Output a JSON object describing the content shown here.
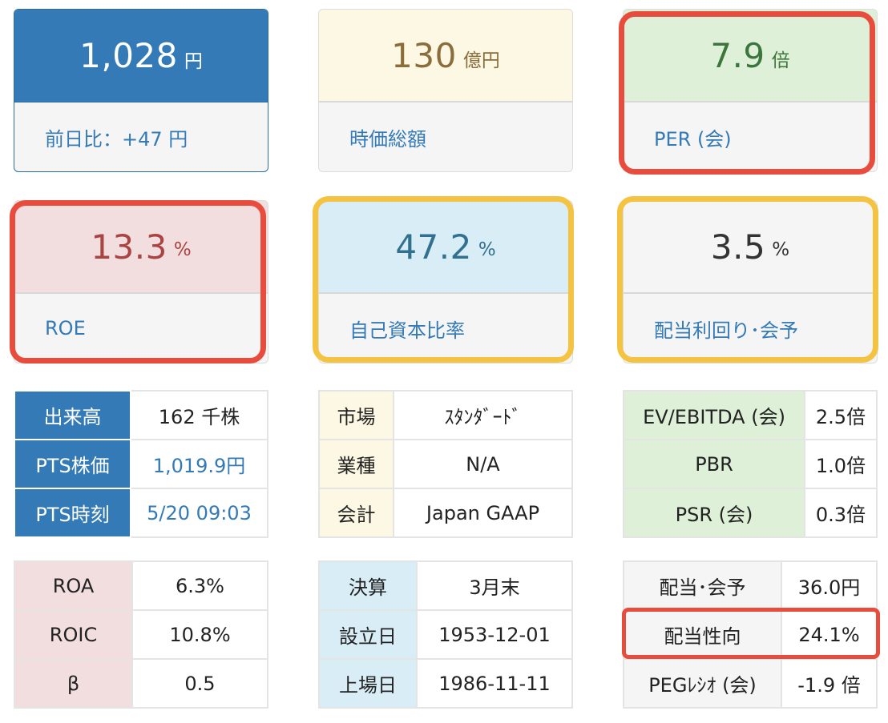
{
  "cards": [
    {
      "value": "1,028",
      "unit": "円",
      "label": "前日比：+47 円"
    },
    {
      "value": "130",
      "unit": "億円",
      "label": "時価総額"
    },
    {
      "value": "7.9",
      "unit": "倍",
      "label": "PER (会)"
    },
    {
      "value": "13.3",
      "unit": "%",
      "label": "ROE"
    },
    {
      "value": "47.2",
      "unit": "%",
      "label": "自己資本比率"
    },
    {
      "value": "3.5",
      "unit": "%",
      "label": "配当利回り･会予"
    }
  ],
  "table_trading": [
    {
      "key": "出来高",
      "value": "162 千株"
    },
    {
      "key": "PTS株価",
      "value": "1,019.9円"
    },
    {
      "key": "PTS時刻",
      "value": "5/20 09:03"
    }
  ],
  "table_market": [
    {
      "key": "市場",
      "value": "ｽﾀﾝﾀﾞｰﾄﾞ"
    },
    {
      "key": "業種",
      "value": "N/A"
    },
    {
      "key": "会計",
      "value": "Japan GAAP"
    }
  ],
  "table_valuation": [
    {
      "key": "EV/EBITDA (会)",
      "value": "2.5倍"
    },
    {
      "key": "PBR",
      "value": "1.0倍"
    },
    {
      "key": "PSR (会)",
      "value": "0.3倍"
    }
  ],
  "table_returns": [
    {
      "key": "ROA",
      "value": "6.3%"
    },
    {
      "key": "ROIC",
      "value": "10.8%"
    },
    {
      "key": "β",
      "value": "0.5"
    }
  ],
  "table_company": [
    {
      "key": "決算",
      "value": "3月末"
    },
    {
      "key": "設立日",
      "value": "1953-12-01"
    },
    {
      "key": "上場日",
      "value": "1986-11-11"
    }
  ],
  "table_dividend": [
    {
      "key": "配当･会予",
      "value": "36.0円"
    },
    {
      "key": "配当性向",
      "value": "24.1%"
    },
    {
      "key": "PEGﾚｼｵ (会)",
      "value": "-1.9 倍"
    }
  ],
  "colors": {
    "primary": "#337ab7",
    "highlight_red": "#e84c3d",
    "highlight_yellow": "#f5c342"
  }
}
